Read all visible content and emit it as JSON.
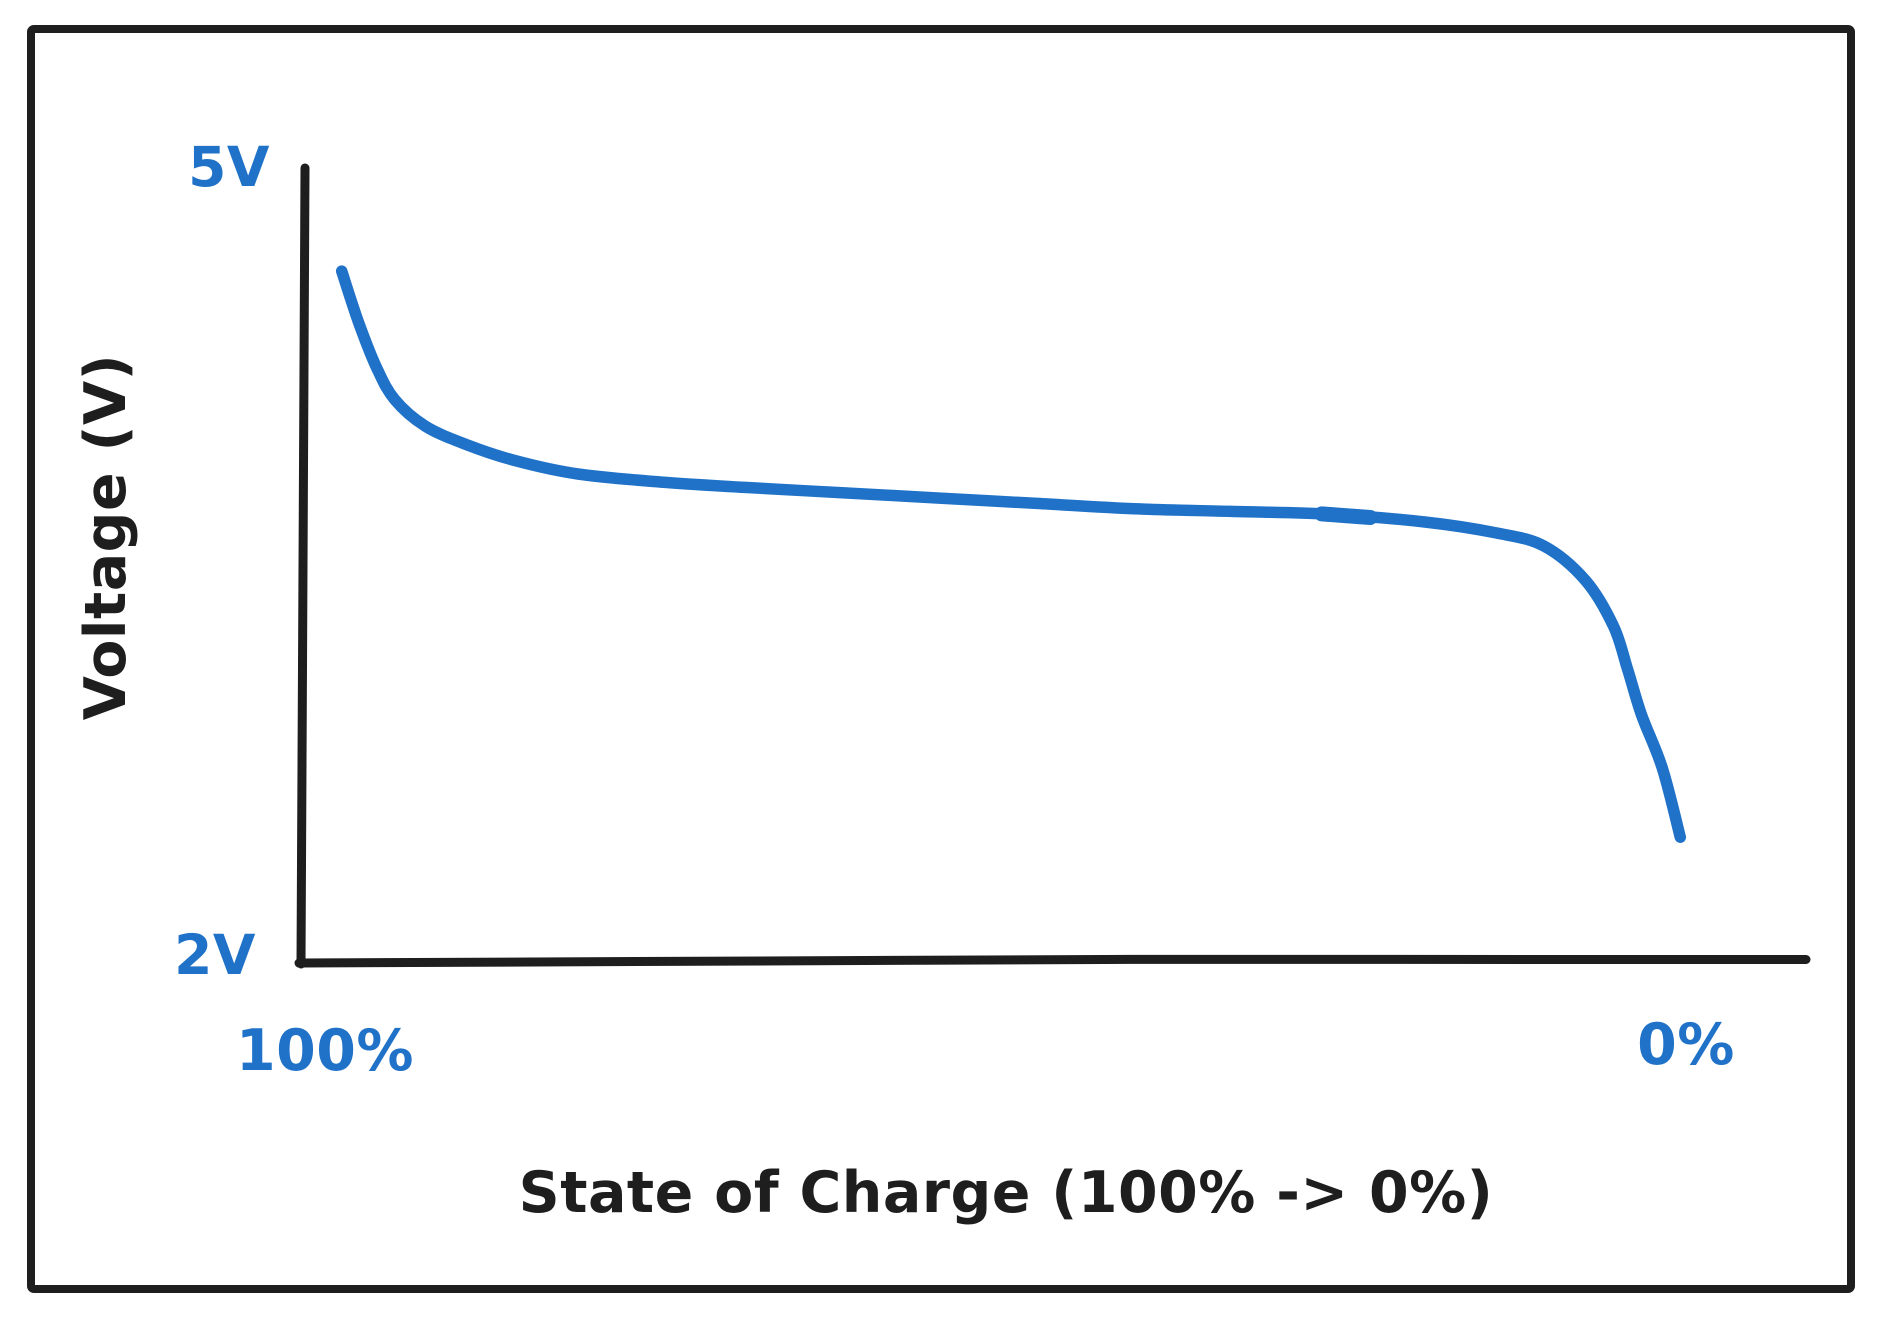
{
  "labels": {
    "y_top_tick": "5V",
    "y_bottom_tick": "2V",
    "x_left_tick": "100%",
    "x_right_tick": "0%",
    "x_title": "State of Charge (100% -> 0%)",
    "y_title": "Voltage (V)"
  },
  "colors": {
    "curve_blue": "#1f72c8",
    "ink": "#1e1e1e",
    "background": "#ffffff"
  },
  "chart_data": {
    "type": "line",
    "title": "",
    "xlabel": "State of Charge (100% -> 0%)",
    "ylabel": "Voltage (V)",
    "x_axis": {
      "min": 0,
      "max": 100,
      "reversed": true,
      "tick_labels": [
        "100%",
        "0%"
      ]
    },
    "y_axis": {
      "min": 2,
      "max": 5,
      "tick_labels": [
        "2V",
        "5V"
      ]
    },
    "grid": false,
    "legend": null,
    "style": "hand-drawn sketch, single blue stroke on white, black axes",
    "series": [
      {
        "name": "battery discharge curve",
        "color": "#1f72c8",
        "points_soc_pct_vs_volts": [
          [
            97.0,
            4.61
          ],
          [
            95.8,
            4.42
          ],
          [
            94.5,
            4.25
          ],
          [
            93.2,
            4.13
          ],
          [
            91.0,
            4.03
          ],
          [
            88.0,
            3.96
          ],
          [
            84.5,
            3.9
          ],
          [
            80.0,
            3.85
          ],
          [
            74.0,
            3.82
          ],
          [
            68.0,
            3.8
          ],
          [
            61.0,
            3.78
          ],
          [
            54.0,
            3.76
          ],
          [
            47.0,
            3.74
          ],
          [
            40.0,
            3.72
          ],
          [
            33.0,
            3.71
          ],
          [
            26.0,
            3.7
          ],
          [
            19.0,
            3.67
          ],
          [
            14.0,
            3.63
          ],
          [
            10.5,
            3.58
          ],
          [
            7.5,
            3.45
          ],
          [
            5.5,
            3.28
          ],
          [
            4.5,
            3.12
          ],
          [
            3.5,
            2.95
          ],
          [
            2.0,
            2.75
          ],
          [
            0.7,
            2.49
          ]
        ],
        "pen_overlap_segment_soc": [
          26.5,
          23.0
        ]
      }
    ]
  }
}
